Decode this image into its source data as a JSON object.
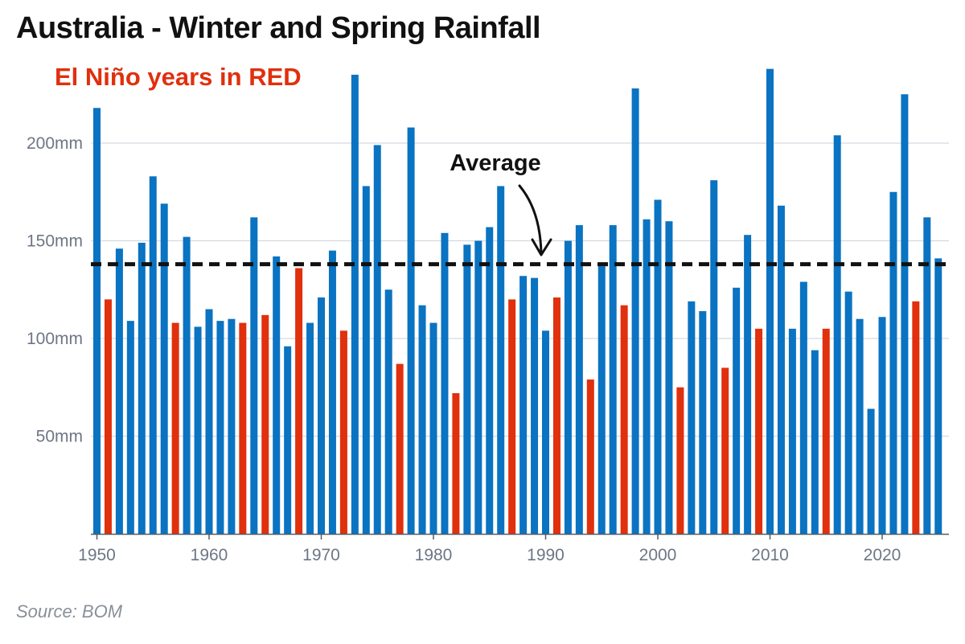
{
  "title": "Australia - Winter and Spring Rainfall",
  "subtitle": "El Niño years in RED",
  "source": "Source: BOM",
  "colors": {
    "normal": "#0a73c2",
    "el_nino": "#e0300d",
    "average_line": "#111111",
    "grid": "#d3d9e0",
    "axis": "#555b66"
  },
  "chart_data": {
    "type": "bar",
    "title": "Australia - Winter and Spring Rainfall",
    "subtitle": "El Niño years in RED",
    "xlabel": "",
    "ylabel": "",
    "ylim": [
      0,
      240
    ],
    "yticks": [
      50,
      100,
      150,
      200
    ],
    "ytick_labels": [
      "50mm",
      "100mm",
      "150mm",
      "200mm"
    ],
    "xticks": [
      1950,
      1960,
      1970,
      1980,
      1990,
      2000,
      2010,
      2020
    ],
    "xtick_labels": [
      "1950",
      "1960",
      "1970",
      "1980",
      "1990",
      "2000",
      "2010",
      "2020"
    ],
    "grid": true,
    "average": 138,
    "average_label": "Average",
    "years": [
      1950,
      1951,
      1952,
      1953,
      1954,
      1955,
      1956,
      1957,
      1958,
      1959,
      1960,
      1961,
      1962,
      1963,
      1964,
      1965,
      1966,
      1967,
      1968,
      1969,
      1970,
      1971,
      1972,
      1973,
      1974,
      1975,
      1976,
      1977,
      1978,
      1979,
      1980,
      1981,
      1982,
      1983,
      1984,
      1985,
      1986,
      1987,
      1988,
      1989,
      1990,
      1991,
      1992,
      1993,
      1994,
      1995,
      1996,
      1997,
      1998,
      1999,
      2000,
      2001,
      2002,
      2003,
      2004,
      2005,
      2006,
      2007,
      2008,
      2009,
      2010,
      2011,
      2012,
      2013,
      2014,
      2015,
      2016,
      2017,
      2018,
      2019,
      2020,
      2021,
      2022,
      2023,
      2024,
      2025
    ],
    "values": [
      218,
      120,
      146,
      109,
      149,
      183,
      169,
      108,
      152,
      106,
      115,
      109,
      110,
      108,
      162,
      112,
      142,
      96,
      136,
      108,
      121,
      145,
      104,
      235,
      178,
      199,
      125,
      87,
      208,
      117,
      108,
      154,
      72,
      148,
      150,
      157,
      178,
      120,
      132,
      131,
      104,
      121,
      150,
      158,
      79,
      137,
      158,
      117,
      228,
      161,
      171,
      160,
      75,
      119,
      114,
      181,
      85,
      126,
      153,
      105,
      238,
      168,
      105,
      129,
      94,
      105,
      204,
      124,
      110,
      64,
      111,
      175,
      225,
      119,
      162,
      141
    ],
    "el_nino": [
      false,
      true,
      false,
      false,
      false,
      false,
      false,
      true,
      false,
      false,
      false,
      false,
      false,
      true,
      false,
      true,
      false,
      false,
      true,
      false,
      false,
      false,
      true,
      false,
      false,
      false,
      false,
      true,
      false,
      false,
      false,
      false,
      true,
      false,
      false,
      false,
      false,
      true,
      false,
      false,
      false,
      true,
      false,
      false,
      true,
      false,
      false,
      true,
      false,
      false,
      false,
      false,
      true,
      false,
      false,
      false,
      true,
      false,
      false,
      true,
      false,
      false,
      false,
      false,
      false,
      true,
      false,
      false,
      false,
      false,
      false,
      false,
      false,
      true,
      false,
      false
    ]
  }
}
